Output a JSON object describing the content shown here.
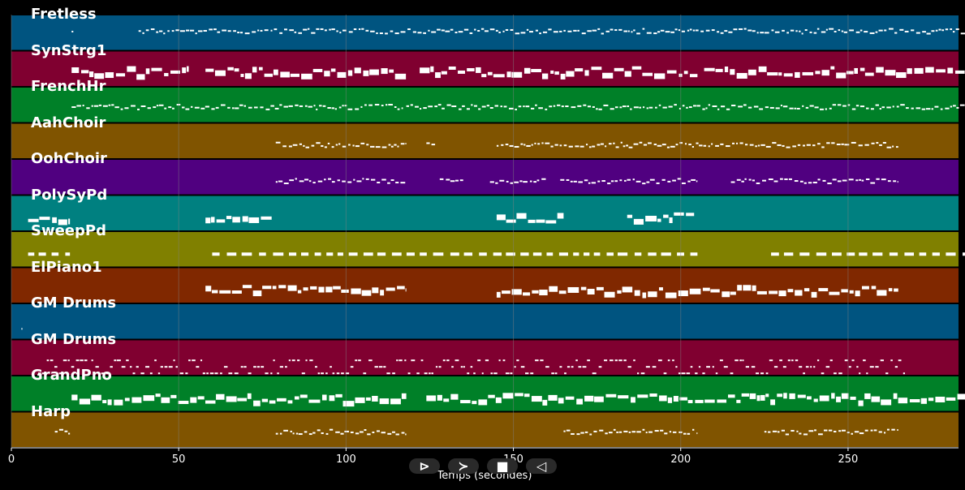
{
  "chart_data": {
    "type": "piano-roll",
    "xlabel": "Temps (secondes)",
    "xlim": [
      0,
      283
    ],
    "xticks": [
      0,
      50,
      100,
      150,
      200,
      250
    ],
    "grid": true,
    "tracks": [
      {
        "name": "Fretless",
        "color": "#005480",
        "segments": [
          [
            18,
            18.5
          ],
          [
            38,
            285
          ]
        ],
        "style": "dots",
        "level": 0.35
      },
      {
        "name": "SynStrg1",
        "color": "#800030",
        "segments": [
          [
            18,
            53
          ],
          [
            58,
            118
          ],
          [
            122,
            205
          ],
          [
            207,
            285
          ]
        ],
        "style": "blocks",
        "level": 0.45
      },
      {
        "name": "FrenchHr",
        "color": "#008028",
        "segments": [
          [
            18,
            117
          ],
          [
            118,
            285
          ]
        ],
        "style": "dots",
        "level": 0.45
      },
      {
        "name": "AahChoir",
        "color": "#805400",
        "segments": [
          [
            79,
            118
          ],
          [
            124,
            127
          ],
          [
            145,
            265
          ]
        ],
        "style": "dots",
        "level": 0.5
      },
      {
        "name": "OohChoir",
        "color": "#500080",
        "segments": [
          [
            79,
            118
          ],
          [
            128,
            135
          ],
          [
            143,
            160
          ],
          [
            164,
            205
          ],
          [
            215,
            265
          ]
        ],
        "style": "dots",
        "level": 0.5
      },
      {
        "name": "PolySyPd",
        "color": "#008080",
        "segments": [
          [
            5,
            17.5
          ],
          [
            58,
            78
          ],
          [
            145,
            165
          ],
          [
            184,
            204
          ]
        ],
        "style": "blocks",
        "level": 0.5
      },
      {
        "name": "SweepPd",
        "color": "#808000",
        "segments": [
          [
            5,
            17.5
          ],
          [
            60,
            205
          ],
          [
            227,
            285
          ]
        ],
        "style": "dashes",
        "level": 0.5
      },
      {
        "name": "ElPiano1",
        "color": "#802800",
        "segments": [
          [
            58,
            118
          ],
          [
            145,
            265
          ]
        ],
        "style": "blocks",
        "level": 0.5
      },
      {
        "name": "GM Drums",
        "color": "#005480",
        "segments": [
          [
            3,
            3.3
          ]
        ],
        "style": "dots",
        "level": 0.6
      },
      {
        "name": "GM Drums",
        "color": "#800030",
        "segments": [
          [
            8,
            267
          ]
        ],
        "style": "drums",
        "level": 0.6
      },
      {
        "name": "GrandPno",
        "color": "#008028",
        "segments": [
          [
            18,
            118
          ],
          [
            124,
            285
          ]
        ],
        "style": "blocks",
        "level": 0.5
      },
      {
        "name": "Harp",
        "color": "#805400",
        "segments": [
          [
            13,
            17.5
          ],
          [
            79,
            118
          ],
          [
            165,
            205
          ],
          [
            225,
            265
          ]
        ],
        "style": "dots",
        "level": 0.45
      }
    ]
  },
  "controls": {
    "play_label": "⊳",
    "forward_label": "≻",
    "stop_label": "■",
    "back_label": "◁"
  },
  "colors": {
    "background": "#000000",
    "note": "#ffffff",
    "grid": "#808080"
  }
}
